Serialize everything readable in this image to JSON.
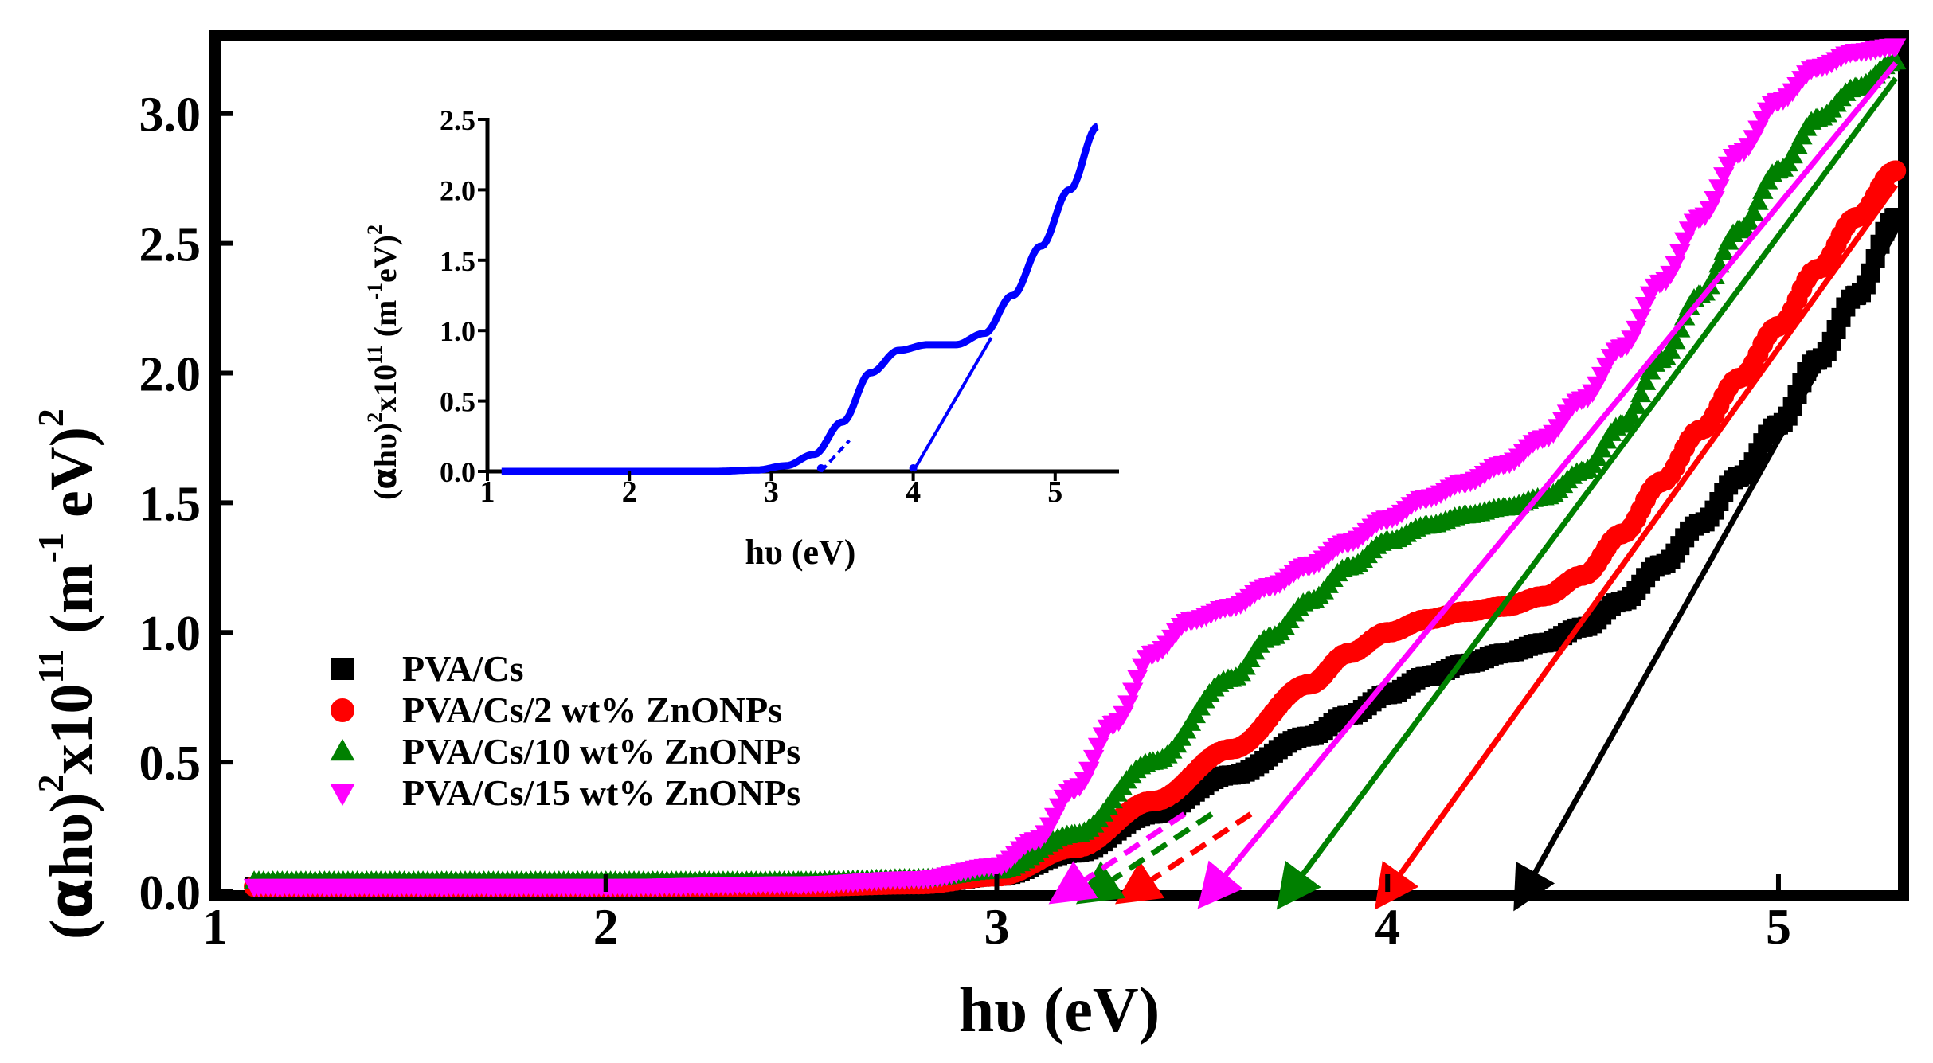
{
  "chart_data": [
    {
      "type": "scatter",
      "xlabel": "hυ (eV)",
      "ylabel": "(αhυ)² x10¹¹ (m⁻¹ eV)²",
      "ylabel_parts": {
        "a": "(",
        "alpha": "α",
        "hv": "hυ",
        "b": ")",
        "sup1": "2",
        "x10": "x10",
        "sup2": "11",
        "c": " (m",
        "sup3": "-1",
        "d": " eV)",
        "sup4": "2"
      },
      "xlim": [
        1,
        5.32
      ],
      "ylim": [
        0,
        3.3
      ],
      "xticks": [
        "1",
        "2",
        "3",
        "4",
        "5"
      ],
      "yticks": [
        "0.0",
        "0.5",
        "1.0",
        "1.5",
        "2.0",
        "2.5",
        "3.0"
      ],
      "legend_position": "center-left",
      "series": [
        {
          "name": "PVA/Cs",
          "marker": "square",
          "color": "#000000",
          "x": [
            1.1,
            2.0,
            2.5,
            2.8,
            3.0,
            3.2,
            3.4,
            3.6,
            3.8,
            3.9,
            4.0,
            4.1,
            4.2,
            4.3,
            4.4,
            4.5,
            4.6,
            4.7,
            4.8,
            4.9,
            5.0,
            5.1,
            5.2,
            5.3
          ],
          "y": [
            0.02,
            0.02,
            0.02,
            0.03,
            0.06,
            0.15,
            0.3,
            0.45,
            0.6,
            0.68,
            0.76,
            0.83,
            0.88,
            0.92,
            0.96,
            1.02,
            1.12,
            1.26,
            1.42,
            1.6,
            1.8,
            2.05,
            2.3,
            2.6
          ],
          "extrapolated_gap": 4.35
        },
        {
          "name": "PVA/Cs/2 wt% ZnONPs",
          "marker": "circle",
          "color": "#ff0000",
          "x": [
            1.1,
            2.0,
            2.5,
            2.8,
            3.0,
            3.2,
            3.4,
            3.6,
            3.8,
            3.9,
            4.0,
            4.1,
            4.2,
            4.3,
            4.4,
            4.5,
            4.6,
            4.7,
            4.8,
            4.9,
            5.0,
            5.1,
            5.2,
            5.3
          ],
          "y": [
            0.02,
            0.02,
            0.02,
            0.03,
            0.06,
            0.17,
            0.35,
            0.55,
            0.8,
            0.92,
            1.0,
            1.05,
            1.08,
            1.1,
            1.14,
            1.22,
            1.38,
            1.58,
            1.78,
            1.98,
            2.18,
            2.4,
            2.6,
            2.78
          ],
          "extrapolated_gap": 4.0
        },
        {
          "name": "PVA/Cs/10 wt% ZnONPs",
          "marker": "triangle-up",
          "color": "#008000",
          "x": [
            1.1,
            2.0,
            2.5,
            2.8,
            3.0,
            3.2,
            3.4,
            3.6,
            3.7,
            3.8,
            3.9,
            4.0,
            4.1,
            4.2,
            4.3,
            4.4,
            4.5,
            4.6,
            4.7,
            4.8,
            4.9,
            5.0,
            5.1,
            5.2,
            5.3
          ],
          "y": [
            0.04,
            0.04,
            0.04,
            0.05,
            0.08,
            0.22,
            0.5,
            0.82,
            0.98,
            1.12,
            1.25,
            1.35,
            1.41,
            1.45,
            1.48,
            1.52,
            1.62,
            1.8,
            2.05,
            2.3,
            2.55,
            2.78,
            2.98,
            3.1,
            3.2
          ],
          "extrapolated_gap": 3.75
        },
        {
          "name": "PVA/Cs/15 wt% ZnONPs",
          "marker": "triangle-down",
          "color": "#ff00ff",
          "x": [
            1.1,
            2.0,
            2.5,
            2.8,
            3.0,
            3.1,
            3.2,
            3.3,
            3.4,
            3.5,
            3.6,
            3.7,
            3.8,
            3.9,
            4.0,
            4.1,
            4.2,
            4.3,
            4.4,
            4.5,
            4.6,
            4.7,
            4.8,
            4.9,
            5.0,
            5.1,
            5.2,
            5.3
          ],
          "y": [
            0.02,
            0.02,
            0.03,
            0.05,
            0.1,
            0.2,
            0.4,
            0.65,
            0.92,
            1.05,
            1.1,
            1.18,
            1.26,
            1.35,
            1.44,
            1.52,
            1.58,
            1.65,
            1.75,
            1.9,
            2.1,
            2.35,
            2.6,
            2.85,
            3.05,
            3.18,
            3.24,
            3.26
          ],
          "extrapolated_gap": 3.55
        }
      ],
      "dashed_tangent_intercepts": [
        {
          "series": "PVA/Cs/2 wt% ZnONPs",
          "x": 3.35,
          "color": "#ff0000"
        },
        {
          "series": "PVA/Cs/10 wt% ZnONPs",
          "x": 3.25,
          "color": "#008000"
        },
        {
          "series": "PVA/Cs/15 wt% ZnONPs",
          "x": 3.18,
          "color": "#ff00ff"
        }
      ]
    },
    {
      "type": "line",
      "inset": true,
      "xlabel": "hυ (eV)",
      "ylabel": "(αhυ)² x10¹¹ (m⁻¹ eV)²",
      "ylabel_parts": {
        "a": "(",
        "alpha": "α",
        "hv": "hυ",
        "b": ")",
        "sup1": "2",
        "x10": "x10",
        "sup2": "11",
        "c": " (m",
        "sup3": "-1",
        "d": "eV)",
        "sup4": "2"
      },
      "xlim": [
        1,
        5.45
      ],
      "ylim": [
        0,
        2.5
      ],
      "xticks": [
        "1",
        "2",
        "3",
        "4",
        "5"
      ],
      "yticks": [
        "0.0",
        "0.5",
        "1.0",
        "1.5",
        "2.0",
        "2.5"
      ],
      "color": "#0000ff",
      "x": [
        1.1,
        2.0,
        2.6,
        2.9,
        3.1,
        3.3,
        3.5,
        3.7,
        3.9,
        4.1,
        4.3,
        4.5,
        4.7,
        4.9,
        5.1,
        5.3
      ],
      "y": [
        0.0,
        0.0,
        0.0,
        0.01,
        0.04,
        0.12,
        0.35,
        0.7,
        0.86,
        0.9,
        0.9,
        0.98,
        1.25,
        1.6,
        2.0,
        2.45
      ],
      "tangent_intercepts": [
        3.35,
        4.0
      ]
    }
  ]
}
